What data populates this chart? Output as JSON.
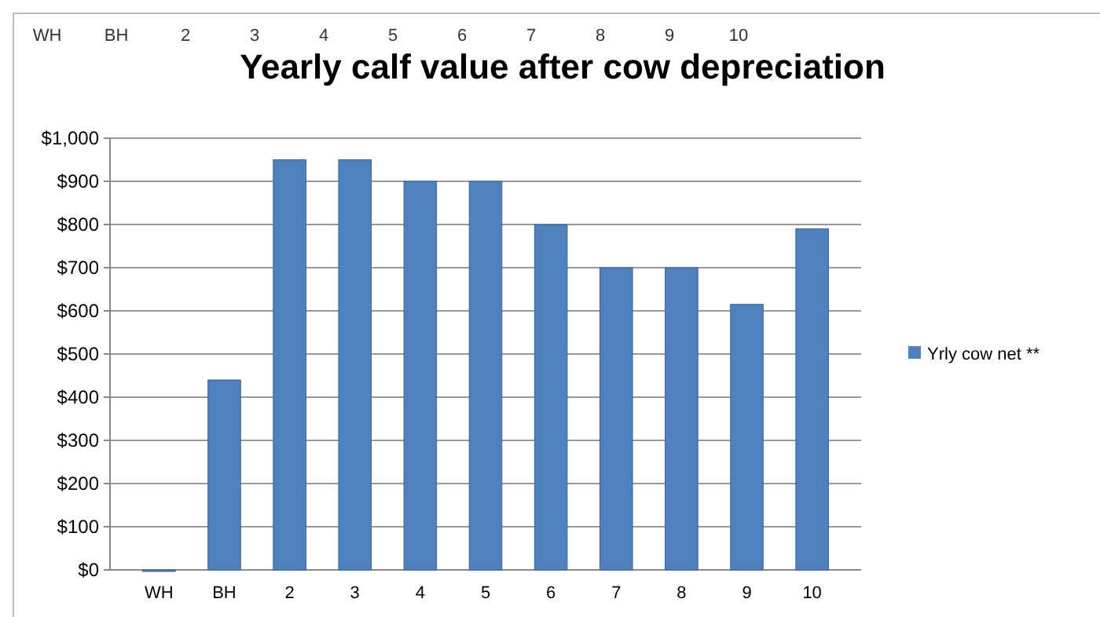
{
  "chart_data": {
    "type": "bar",
    "title": "Yearly calf value after cow depreciation",
    "categories": [
      "WH",
      "BH",
      "2",
      "3",
      "4",
      "5",
      "6",
      "7",
      "8",
      "9",
      "10"
    ],
    "series": [
      {
        "name": "Yrly cow net **",
        "color": "#4f81bd",
        "values": [
          0,
          440,
          950,
          950,
          900,
          900,
          800,
          700,
          700,
          615,
          790
        ]
      }
    ],
    "ylim": [
      0,
      1000
    ],
    "yticks": [
      {
        "value": 0,
        "label": "$0"
      },
      {
        "value": 100,
        "label": "$100"
      },
      {
        "value": 200,
        "label": "$200"
      },
      {
        "value": 300,
        "label": "$300"
      },
      {
        "value": 400,
        "label": "$400"
      },
      {
        "value": 500,
        "label": "$500"
      },
      {
        "value": 600,
        "label": "$600"
      },
      {
        "value": 700,
        "label": "$700"
      },
      {
        "value": 800,
        "label": "$800"
      },
      {
        "value": 900,
        "label": "$900"
      },
      {
        "value": 1000,
        "label": "$1,000"
      }
    ],
    "grid": "y",
    "legend": "right",
    "annotations": [
      "WH",
      "BH",
      "2",
      "3",
      "4",
      "5",
      "6",
      "7",
      "8",
      "9",
      "10"
    ]
  }
}
